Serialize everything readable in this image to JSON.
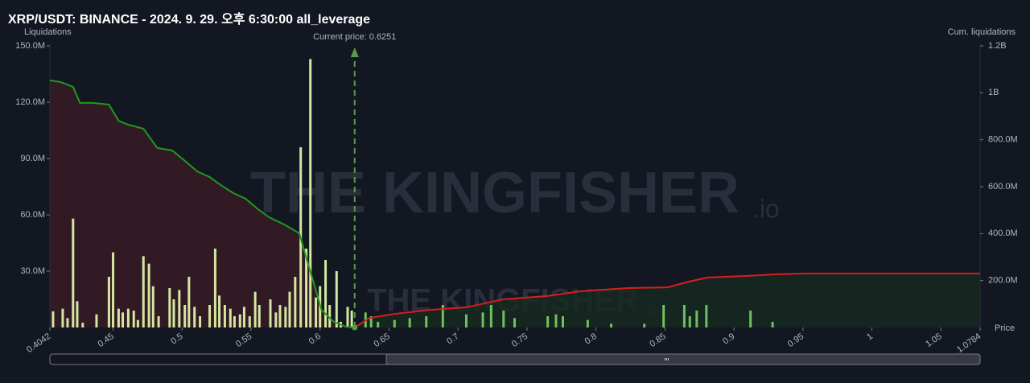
{
  "chart_data": {
    "type": "liquidation",
    "title": "XRP/USDT: BINANCE - 2024. 9. 29. 오후 6:30:00 all_leverage",
    "y_label": "Liquidations",
    "y2_label": "Cum. liquidations",
    "x_label": "Price",
    "annotation": "Current price: 0.6251",
    "current_price": 0.6251,
    "watermark": "THE KINGFISHER",
    "watermark_suffix": ".io",
    "xlim": [
      0.4042,
      1.0784
    ],
    "xticks": [
      0.4042,
      0.45,
      0.5,
      0.55,
      0.6,
      0.65,
      0.7,
      0.75,
      0.8,
      0.85,
      0.9,
      0.95,
      1,
      1.05,
      1.0784
    ],
    "ylim": [
      0,
      150
    ],
    "yticks": [
      {
        "value": 30,
        "label": "30.0M"
      },
      {
        "value": 60,
        "label": "60.0M"
      },
      {
        "value": 90,
        "label": "90.0M"
      },
      {
        "value": 120,
        "label": "120.0M"
      },
      {
        "value": 150,
        "label": "150.0M"
      }
    ],
    "y2lim": [
      0,
      1200
    ],
    "y2ticks": [
      {
        "value": 200,
        "label": "200.0M"
      },
      {
        "value": 400,
        "label": "400.0M"
      },
      {
        "value": 600,
        "label": "600.0M"
      },
      {
        "value": 800,
        "label": "800.0M"
      },
      {
        "value": 1000,
        "label": "1B"
      },
      {
        "value": 1200,
        "label": "1.2B"
      }
    ],
    "series": [
      {
        "type": "bar",
        "color": "#d4e6a0",
        "x": [
          0.4065,
          0.4135,
          0.417,
          0.421,
          0.424,
          0.428,
          0.438,
          0.447,
          0.45,
          0.454,
          0.457,
          0.461,
          0.465,
          0.468,
          0.472,
          0.476,
          0.479,
          0.483,
          0.491,
          0.494,
          0.498,
          0.502,
          0.505,
          0.509,
          0.513,
          0.52,
          0.524,
          0.527,
          0.531,
          0.535,
          0.538,
          0.542,
          0.545,
          0.549,
          0.553,
          0.556,
          0.564,
          0.568,
          0.571,
          0.575,
          0.578,
          0.582,
          0.586,
          0.59,
          0.593,
          0.597,
          0.6,
          0.604,
          0.607,
          0.612,
          0.615,
          0.62,
          0.623
        ],
        "values": [
          8.6,
          10,
          5,
          58,
          14,
          2.5,
          7,
          27,
          40,
          10,
          8,
          10,
          9,
          4,
          38,
          34,
          22,
          6,
          21,
          15,
          20,
          12,
          27,
          11,
          6,
          12,
          42,
          17,
          12,
          10,
          6,
          7,
          11,
          6,
          19,
          12,
          15,
          8,
          12,
          11,
          19,
          27,
          96,
          42,
          143,
          16,
          22,
          36,
          12,
          30,
          3,
          11,
          9
        ]
      },
      {
        "type": "bar",
        "color": "#6fbf5f",
        "x": [
          0.633,
          0.637,
          0.642,
          0.654,
          0.665,
          0.677,
          0.689,
          0.706,
          0.718,
          0.724,
          0.733,
          0.741,
          0.765,
          0.771,
          0.776,
          0.794,
          0.811,
          0.835,
          0.849,
          0.864,
          0.868,
          0.873,
          0.88,
          0.912,
          0.928
        ],
        "values": [
          8,
          6,
          3,
          4,
          5,
          6,
          12,
          7,
          8,
          12,
          9,
          5,
          6,
          7,
          6,
          4,
          2,
          2,
          12,
          12,
          6,
          9,
          12,
          9,
          3
        ]
      },
      {
        "type": "line",
        "axis": "y2",
        "color": "#1e9a1e",
        "area_color": "#3a1c26",
        "x": [
          0.4042,
          0.412,
          0.421,
          0.426,
          0.435,
          0.447,
          0.454,
          0.461,
          0.472,
          0.482,
          0.493,
          0.502,
          0.511,
          0.52,
          0.528,
          0.537,
          0.546,
          0.555,
          0.563,
          0.575,
          0.585,
          0.59,
          0.596,
          0.601,
          0.61,
          0.619,
          0.6251
        ],
        "values": [
          1053,
          1046,
          1025,
          957,
          957,
          950,
          881,
          864,
          847,
          765,
          754,
          710,
          665,
          641,
          607,
          573,
          549,
          504,
          470,
          436,
          401,
          298,
          178,
          75,
          24,
          3,
          0
        ]
      },
      {
        "type": "line",
        "axis": "y2",
        "color": "#d81e1e",
        "area_color": "#172a20",
        "x": [
          0.6251,
          0.636,
          0.654,
          0.68,
          0.706,
          0.733,
          0.765,
          0.788,
          0.823,
          0.852,
          0.867,
          0.881,
          0.91,
          0.928,
          0.951,
          1.0784
        ],
        "values": [
          0,
          41,
          58,
          75,
          86,
          120,
          134,
          154,
          168,
          171,
          195,
          213,
          220,
          226,
          230,
          230
        ]
      }
    ]
  }
}
